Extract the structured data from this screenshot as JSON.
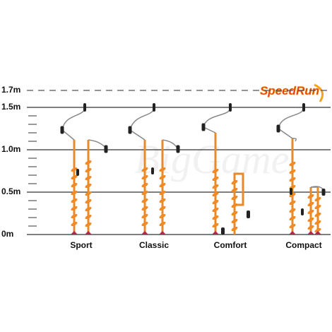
{
  "scale": {
    "labels": [
      "1.7m",
      "1.5m",
      "1.0m",
      "0.5m",
      "0m"
    ]
  },
  "models": [
    "Sport",
    "Classic",
    "Comfort",
    "Compact"
  ],
  "logo": "SpeedRun",
  "watermark": "BigGame"
}
